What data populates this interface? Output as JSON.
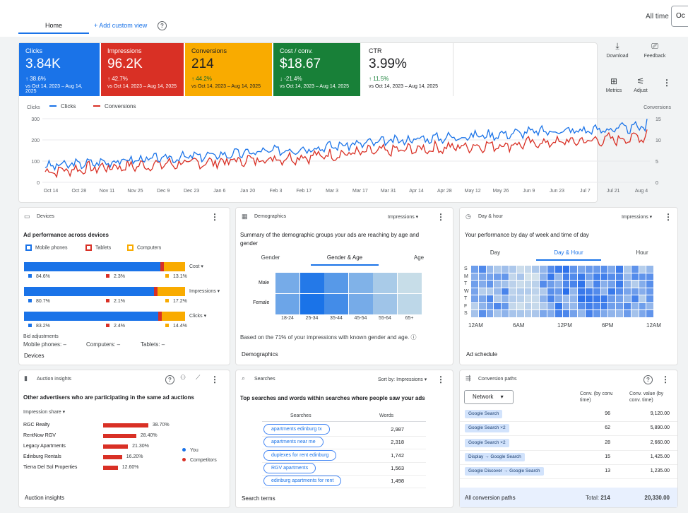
{
  "header": {
    "tabs": [
      "Home"
    ],
    "add_view": "+ Add custom view",
    "range_label": "All time",
    "date_button": "Oc"
  },
  "toolbar": {
    "download": "Download",
    "feedback": "Feedback",
    "metrics": "Metrics",
    "adjust": "Adjust"
  },
  "kpis": [
    {
      "label": "Clicks",
      "value": "3.84K",
      "change": "↑ 38.6%",
      "range": "vs Oct 14, 2023 – Aug 14, 2025",
      "color": "#1a73e8"
    },
    {
      "label": "Impressions",
      "value": "96.2K",
      "change": "↑ 42.7%",
      "range": "vs Oct 14, 2023 – Aug 14, 2025",
      "color": "#d93025"
    },
    {
      "label": "Conversions",
      "value": "214",
      "change": "↑ 44.2%",
      "range": "vs Oct 14, 2023 – Aug 14, 2025",
      "color": "#f9ab00"
    },
    {
      "label": "Cost / conv.",
      "value": "$18.67",
      "change": "↓ -21.4%",
      "range": "vs Oct 14, 2023 – Aug 14, 2025",
      "color": "#188038"
    },
    {
      "label": "CTR",
      "value": "3.99%",
      "change": "↑ 11.5%",
      "range": "vs Oct 14, 2023 – Aug 14, 2025",
      "color": "#ffffff"
    }
  ],
  "chart_data": {
    "type": "line",
    "left_axis_label": "Clicks",
    "right_axis_label": "Conversions",
    "series": [
      {
        "name": "Clicks",
        "color": "#1a73e8",
        "axis": "left"
      },
      {
        "name": "Conversions",
        "color": "#d93025",
        "axis": "right"
      }
    ],
    "yticks_left": [
      "300",
      "200",
      "100",
      "0"
    ],
    "yticks_right": [
      "15",
      "10",
      "5",
      "0"
    ],
    "xticks": [
      "Oct 14",
      "Oct 28",
      "Nov 11",
      "Nov 25",
      "Dec 9",
      "Dec 23",
      "Jan 6",
      "Jan 20",
      "Feb 3",
      "Feb 17",
      "Mar 3",
      "Mar 17",
      "Mar 31",
      "Apr 14",
      "Apr 28",
      "May 12",
      "May 26",
      "Jun 9",
      "Jun 23",
      "Jul 7",
      "Jul 21",
      "Aug 4"
    ],
    "ylim_left": [
      0,
      300
    ],
    "ylim_right": [
      0,
      15
    ],
    "clicks_trend": [
      75,
      85,
      95,
      105,
      112,
      120,
      128,
      138,
      148,
      160,
      170,
      182,
      192,
      205,
      212,
      220,
      228,
      238,
      242,
      246,
      252,
      262
    ],
    "conversions_trend": [
      2.5,
      3,
      3.5,
      3.8,
      4.2,
      4.5,
      4.8,
      5.2,
      5.6,
      6,
      6.5,
      7,
      7.4,
      7.8,
      8.2,
      8.6,
      8.8,
      9.2,
      9.5,
      9.8,
      10.2,
      10.8
    ]
  },
  "devices": {
    "title": "Devices",
    "subtitle": "Ad performance across devices",
    "legend": [
      "Mobile phones",
      "Tablets",
      "Computers"
    ],
    "colors": [
      "#1a73e8",
      "#d93025",
      "#f9ab00"
    ],
    "rows": [
      {
        "metric": "Cost",
        "values": [
          "84.6%",
          "2.3%",
          "13.1%"
        ],
        "pct": [
          84.6,
          2.3,
          13.1
        ]
      },
      {
        "metric": "Impressions",
        "values": [
          "80.7%",
          "2.1%",
          "17.2%"
        ],
        "pct": [
          80.7,
          2.1,
          17.2
        ]
      },
      {
        "metric": "Clicks",
        "values": [
          "83.2%",
          "2.4%",
          "14.4%"
        ],
        "pct": [
          83.2,
          2.4,
          14.4
        ]
      }
    ],
    "bid_label": "Bid adjustments",
    "bid_mobile": "Mobile phones: –",
    "bid_computers": "Computers: –",
    "bid_tablets": "Tablets: –",
    "link": "Devices"
  },
  "demographics": {
    "title": "Demographics",
    "metric": "Impressions",
    "subtitle": "Summary of the demographic groups your ads are reaching by age and gender",
    "tabs": [
      "Gender",
      "Gender & Age",
      "Age"
    ],
    "rows": [
      "Male",
      "Female"
    ],
    "ages": [
      "18-24",
      "25-34",
      "35-44",
      "45-54",
      "55-64",
      "65+"
    ],
    "intensity": [
      [
        0.55,
        0.95,
        0.7,
        0.5,
        0.3,
        0.15
      ],
      [
        0.6,
        1.0,
        0.8,
        0.55,
        0.35,
        0.2
      ]
    ],
    "note": "Based on the 71% of your impressions with known gender and age.",
    "link": "Demographics"
  },
  "dayhour": {
    "title": "Day & hour",
    "metric": "Impressions",
    "subtitle": "Your performance by day of week and time of day",
    "tabs": [
      "Day",
      "Day & Hour",
      "Hour"
    ],
    "days": [
      "S",
      "M",
      "T",
      "W",
      "T",
      "F",
      "S"
    ],
    "hours": [
      "12AM",
      "6AM",
      "12PM",
      "6PM",
      "12AM"
    ],
    "link": "Ad schedule"
  },
  "auction": {
    "title": "Auction insights",
    "subtitle": "Other advertisers who are participating in the same ad auctions",
    "metric": "Impression share",
    "rows": [
      {
        "name": "RGC Realty",
        "value": "38.70%",
        "share": 38.7
      },
      {
        "name": "RentNow RGV",
        "value": "28.40%",
        "share": 28.4
      },
      {
        "name": "Legacy Apartments",
        "value": "21.30%",
        "share": 21.3
      },
      {
        "name": "Edinburg Rentals",
        "value": "16.20%",
        "share": 16.2
      },
      {
        "name": "Tierra Del Sol Properties",
        "value": "12.60%",
        "share": 12.6
      }
    ],
    "legend": [
      "You",
      "Competitors"
    ],
    "link": "Auction insights"
  },
  "searches": {
    "title": "Searches",
    "sort": "Sort by: Impressions",
    "subtitle": "Top searches and words within searches where people saw your ads",
    "col1": "Searches",
    "col2": "Words",
    "rows": [
      {
        "term": "apartments edinburg tx",
        "value": "2,987"
      },
      {
        "term": "apartments near me",
        "value": "2,318"
      },
      {
        "term": "duplexes for rent edinburg",
        "value": "1,742"
      },
      {
        "term": "RGV apartments",
        "value": "1,563"
      },
      {
        "term": "edinburg apartments for rent",
        "value": "1,498"
      }
    ],
    "link": "Search terms"
  },
  "conversion": {
    "title": "Conversion paths",
    "selector": "Network",
    "col1": "Conv. (by conv. time)",
    "col2": "Conv. value (by conv. time)",
    "rows": [
      {
        "path": "Google Search",
        "conv": "96",
        "value": "9,120.00"
      },
      {
        "path": "Google Search ×2",
        "conv": "62",
        "value": "5,890.00"
      },
      {
        "path": "Google Search ×2",
        "conv": "28",
        "value": "2,660.00"
      },
      {
        "path": "Display → Google Search",
        "conv": "15",
        "value": "1,425.00"
      },
      {
        "path": "Google Discover → Google Search",
        "conv": "13",
        "value": "1,235.00"
      }
    ],
    "total_label": "Total:",
    "total_conv": "214",
    "total_value": "20,330.00",
    "link": "All conversion paths"
  }
}
